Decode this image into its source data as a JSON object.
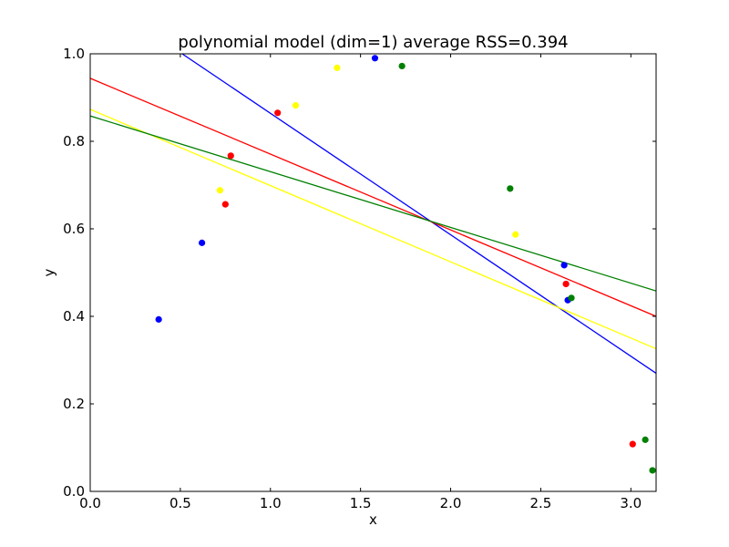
{
  "chart_data": {
    "type": "scatter",
    "title": "polynomial model (dim=1) average RSS=0.394",
    "xlabel": "x",
    "ylabel": "y",
    "xlim": [
      0.0,
      3.14
    ],
    "ylim": [
      0.0,
      1.0
    ],
    "xticks": [
      0.0,
      0.5,
      1.0,
      1.5,
      2.0,
      2.5,
      3.0
    ],
    "xtick_labels": [
      "0.0",
      "0.5",
      "1.0",
      "1.5",
      "2.0",
      "2.5",
      "3.0"
    ],
    "yticks": [
      0.0,
      0.2,
      0.4,
      0.6,
      0.8,
      1.0
    ],
    "ytick_labels": [
      "0.0",
      "0.2",
      "0.4",
      "0.6",
      "0.8",
      "1.0"
    ],
    "grid": false,
    "legend": false,
    "series": [
      {
        "color": "#0000ff",
        "points": [
          [
            0.38,
            0.393
          ],
          [
            0.62,
            0.568
          ],
          [
            1.58,
            0.99
          ],
          [
            2.63,
            0.517
          ],
          [
            2.65,
            0.437
          ]
        ],
        "fit_line": [
          [
            0.51,
            1.0
          ],
          [
            3.14,
            0.27
          ]
        ]
      },
      {
        "color": "#ff0000",
        "points": [
          [
            0.75,
            0.656
          ],
          [
            0.78,
            0.767
          ],
          [
            1.04,
            0.865
          ],
          [
            2.64,
            0.474
          ],
          [
            3.01,
            0.108
          ]
        ],
        "fit_line": [
          [
            0.0,
            0.944
          ],
          [
            3.14,
            0.4
          ]
        ]
      },
      {
        "color": "#ffff00",
        "points": [
          [
            0.72,
            0.688
          ],
          [
            1.14,
            0.882
          ],
          [
            1.37,
            0.968
          ],
          [
            2.36,
            0.587
          ]
        ],
        "fit_line": [
          [
            0.0,
            0.873
          ],
          [
            3.14,
            0.326
          ]
        ]
      },
      {
        "color": "#008000",
        "points": [
          [
            1.73,
            0.972
          ],
          [
            2.33,
            0.692
          ],
          [
            2.67,
            0.442
          ],
          [
            3.08,
            0.118
          ],
          [
            3.12,
            0.048
          ]
        ],
        "fit_line": [
          [
            0.0,
            0.858
          ],
          [
            3.14,
            0.458
          ]
        ]
      }
    ]
  }
}
